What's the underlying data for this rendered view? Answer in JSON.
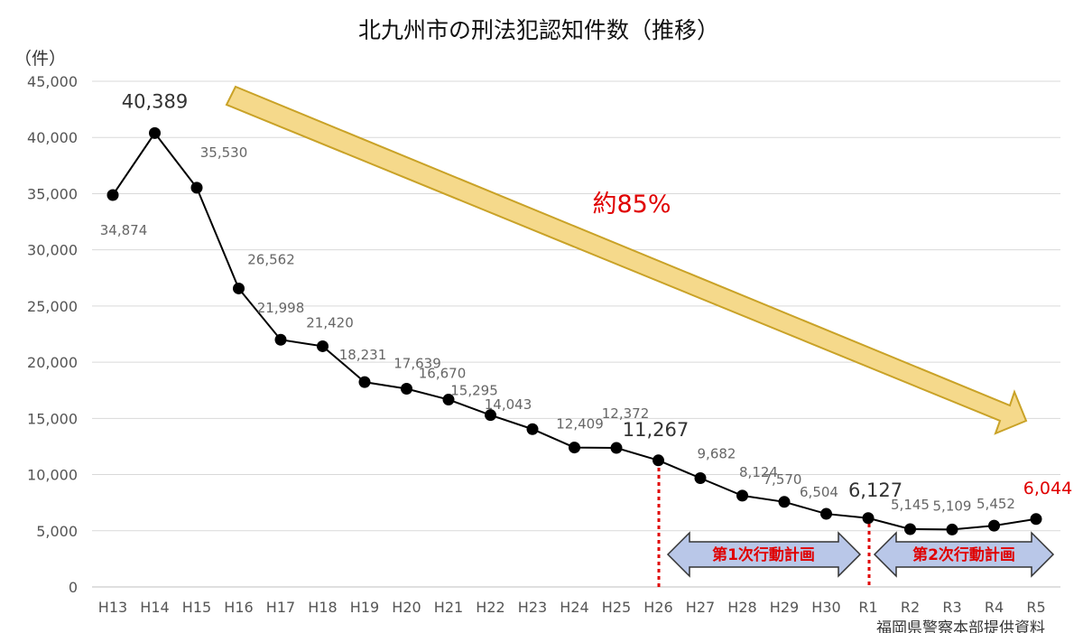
{
  "chart_data": {
    "type": "line",
    "title": "北九州市の刑法犯認知件数（推移）",
    "ylabel": "（件）",
    "ylim": [
      0,
      45000
    ],
    "yticks": [
      0,
      5000,
      10000,
      15000,
      20000,
      25000,
      30000,
      35000,
      40000,
      45000
    ],
    "ytick_labels": [
      "0",
      "5,000",
      "10,000",
      "15,000",
      "20,000",
      "25,000",
      "30,000",
      "35,000",
      "40,000",
      "45,000"
    ],
    "grid": true,
    "categories": [
      "H13",
      "H14",
      "H15",
      "H16",
      "H17",
      "H18",
      "H19",
      "H20",
      "H21",
      "H22",
      "H23",
      "H24",
      "H25",
      "H26",
      "H27",
      "H28",
      "H29",
      "H30",
      "R1",
      "R2",
      "R3",
      "R4",
      "R5"
    ],
    "series": [
      {
        "values": [
          34874,
          40389,
          35530,
          26562,
          21998,
          21420,
          18231,
          17639,
          16670,
          15295,
          14043,
          12409,
          12372,
          11267,
          9682,
          8124,
          7570,
          6504,
          6127,
          5145,
          5109,
          5452,
          6044
        ],
        "labels": [
          "34,874",
          "40,389",
          "35,530",
          "26,562",
          "21,998",
          "21,420",
          "18,231",
          "17,639",
          "16,670",
          "15,295",
          "14,043",
          "12,409",
          "12,372",
          "11,267",
          "9,682",
          "8,124",
          "7,570",
          "6,504",
          "6,127",
          "5,145",
          "5,109",
          "5,452",
          "6,044"
        ]
      }
    ],
    "annotations": {
      "reduction_label": "約85%",
      "plan1_label": "第1次行動計画",
      "plan2_label": "第2次行動計画",
      "source": "福岡県警察本部提供資料"
    },
    "colors": {
      "line": "#000000",
      "arrow_fill": "#f5d98b",
      "arrow_stroke": "#c9a227",
      "plan_fill": "#b9c7e8",
      "plan_stroke": "#333333",
      "highlight": "#e00000",
      "grid": "#d9d9d9"
    }
  }
}
